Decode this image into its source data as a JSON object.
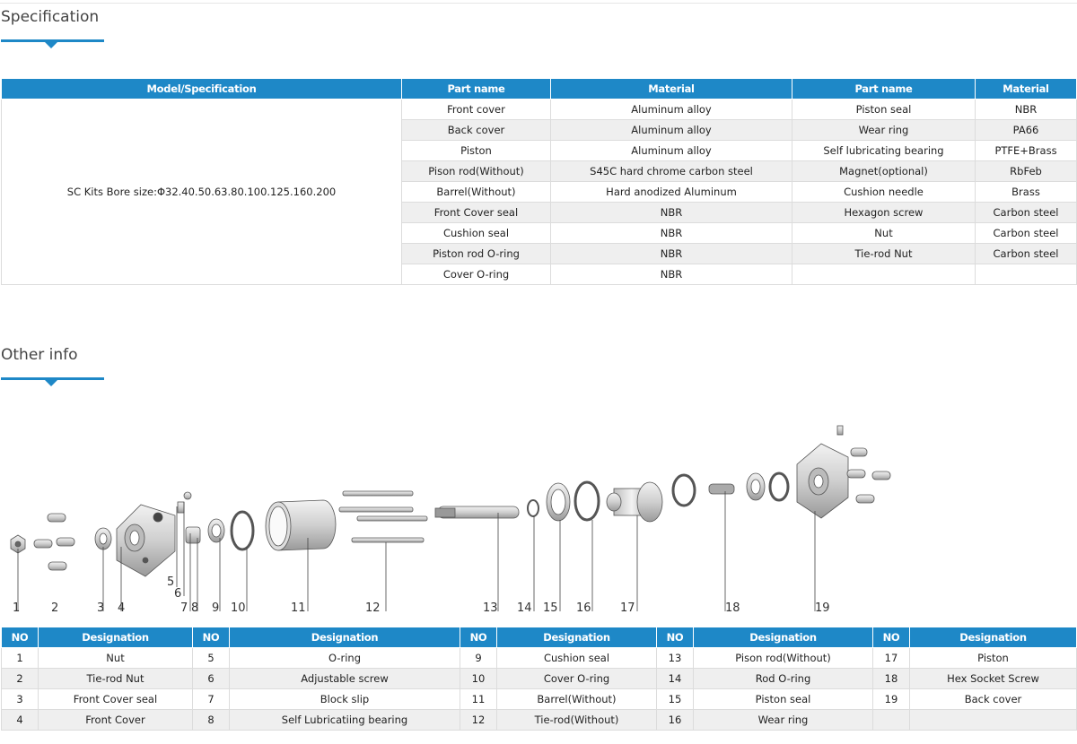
{
  "spec_section": {
    "title": "Specification"
  },
  "other_section": {
    "title": "Other info"
  },
  "spec_table": {
    "headers": [
      "Model/Specification",
      "Part name",
      "Material",
      "Part name",
      "Material"
    ],
    "model": "SC Kits Bore size:Φ32.40.50.63.80.100.125.160.200",
    "rows": [
      [
        "Front cover",
        "Aluminum alloy",
        "Piston seal",
        "NBR"
      ],
      [
        "Back cover",
        "Aluminum alloy",
        "Wear ring",
        "PA66"
      ],
      [
        "Piston",
        "Aluminum alloy",
        "Self lubricating bearing",
        "PTFE+Brass"
      ],
      [
        "Pison rod(Without)",
        "S45C hard chrome carbon steel",
        "Magnet(optional)",
        "RbFeb"
      ],
      [
        "Barrel(Without)",
        "Hard anodized Aluminum",
        "Cushion needle",
        "Brass"
      ],
      [
        "Front Cover seal",
        "NBR",
        "Hexagon screw",
        "Carbon steel"
      ],
      [
        "Cushion seal",
        "NBR",
        "Nut",
        "Carbon steel"
      ],
      [
        "Piston rod O-ring",
        "NBR",
        "Tie-rod Nut",
        "Carbon steel"
      ],
      [
        "Cover O-ring",
        "NBR",
        "",
        ""
      ]
    ]
  },
  "diagram": {
    "callouts": [
      "1",
      "2",
      "3",
      "4",
      "5",
      "6",
      "7",
      "8",
      "9",
      "10",
      "11",
      "12",
      "13",
      "14",
      "15",
      "16",
      "17",
      "18",
      "19"
    ]
  },
  "parts_table": {
    "headers": [
      "NO",
      "Designation",
      "NO",
      "Designation",
      "NO",
      "Designation",
      "NO",
      "Designation",
      "NO",
      "Designation"
    ],
    "rows": [
      [
        "1",
        "Nut",
        "5",
        "O-ring",
        "9",
        "Cushion seal",
        "13",
        "Pison rod(Without)",
        "17",
        "Piston"
      ],
      [
        "2",
        "Tie-rod Nut",
        "6",
        "Adjustable screw",
        "10",
        "Cover O-ring",
        "14",
        "Rod O-ring",
        "18",
        "Hex Socket Screw"
      ],
      [
        "3",
        "Front Cover seal",
        "7",
        "Block slip",
        "11",
        "Barrel(Without)",
        "15",
        "Piston seal",
        "19",
        "Back cover"
      ],
      [
        "4",
        "Front Cover",
        "8",
        "Self Lubricatiing bearing",
        "12",
        "Tie-rod(Without)",
        "16",
        "Wear ring",
        "",
        ""
      ]
    ]
  },
  "colors": {
    "accent": "#1e88c7",
    "alt_row": "#efefef",
    "border": "#dcdcdc"
  }
}
